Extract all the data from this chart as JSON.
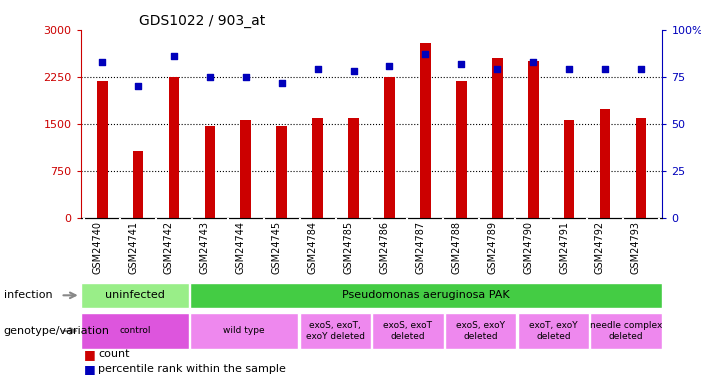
{
  "title": "GDS1022 / 903_at",
  "categories": [
    "GSM24740",
    "GSM24741",
    "GSM24742",
    "GSM24743",
    "GSM24744",
    "GSM24745",
    "GSM24784",
    "GSM24785",
    "GSM24786",
    "GSM24787",
    "GSM24788",
    "GSM24789",
    "GSM24790",
    "GSM24791",
    "GSM24792",
    "GSM24793"
  ],
  "bar_values": [
    2190,
    1060,
    2250,
    1460,
    1560,
    1460,
    1590,
    1590,
    2250,
    2800,
    2190,
    2560,
    2500,
    1560,
    1730,
    1590
  ],
  "dot_values": [
    83,
    70,
    86,
    75,
    75,
    72,
    79,
    78,
    81,
    87,
    82,
    79,
    83,
    79,
    79,
    79
  ],
  "bar_color": "#cc0000",
  "dot_color": "#0000bb",
  "ylim_left": [
    0,
    3000
  ],
  "ylim_right": [
    0,
    100
  ],
  "yticks_left": [
    0,
    750,
    1500,
    2250,
    3000
  ],
  "yticks_right": [
    0,
    25,
    50,
    75,
    100
  ],
  "infection_labels": [
    {
      "text": "uninfected",
      "start": 0,
      "end": 3,
      "color": "#99ee88"
    },
    {
      "text": "Pseudomonas aeruginosa PAK",
      "start": 3,
      "end": 16,
      "color": "#44cc44"
    }
  ],
  "genotype_labels": [
    {
      "text": "control",
      "start": 0,
      "end": 3,
      "color": "#dd55dd"
    },
    {
      "text": "wild type",
      "start": 3,
      "end": 6,
      "color": "#ee88ee"
    },
    {
      "text": "exoS, exoT,\nexoY deleted",
      "start": 6,
      "end": 8,
      "color": "#ee88ee"
    },
    {
      "text": "exoS, exoT\ndeleted",
      "start": 8,
      "end": 10,
      "color": "#ee88ee"
    },
    {
      "text": "exoS, exoY\ndeleted",
      "start": 10,
      "end": 12,
      "color": "#ee88ee"
    },
    {
      "text": "exoT, exoY\ndeleted",
      "start": 12,
      "end": 14,
      "color": "#ee88ee"
    },
    {
      "text": "needle complex\ndeleted",
      "start": 14,
      "end": 16,
      "color": "#ee88ee"
    }
  ],
  "infection_row_label": "infection",
  "genotype_row_label": "genotype/variation",
  "legend_count": "count",
  "legend_pct": "percentile rank within the sample",
  "xtick_bg_color": "#cccccc",
  "bar_width": 0.3
}
